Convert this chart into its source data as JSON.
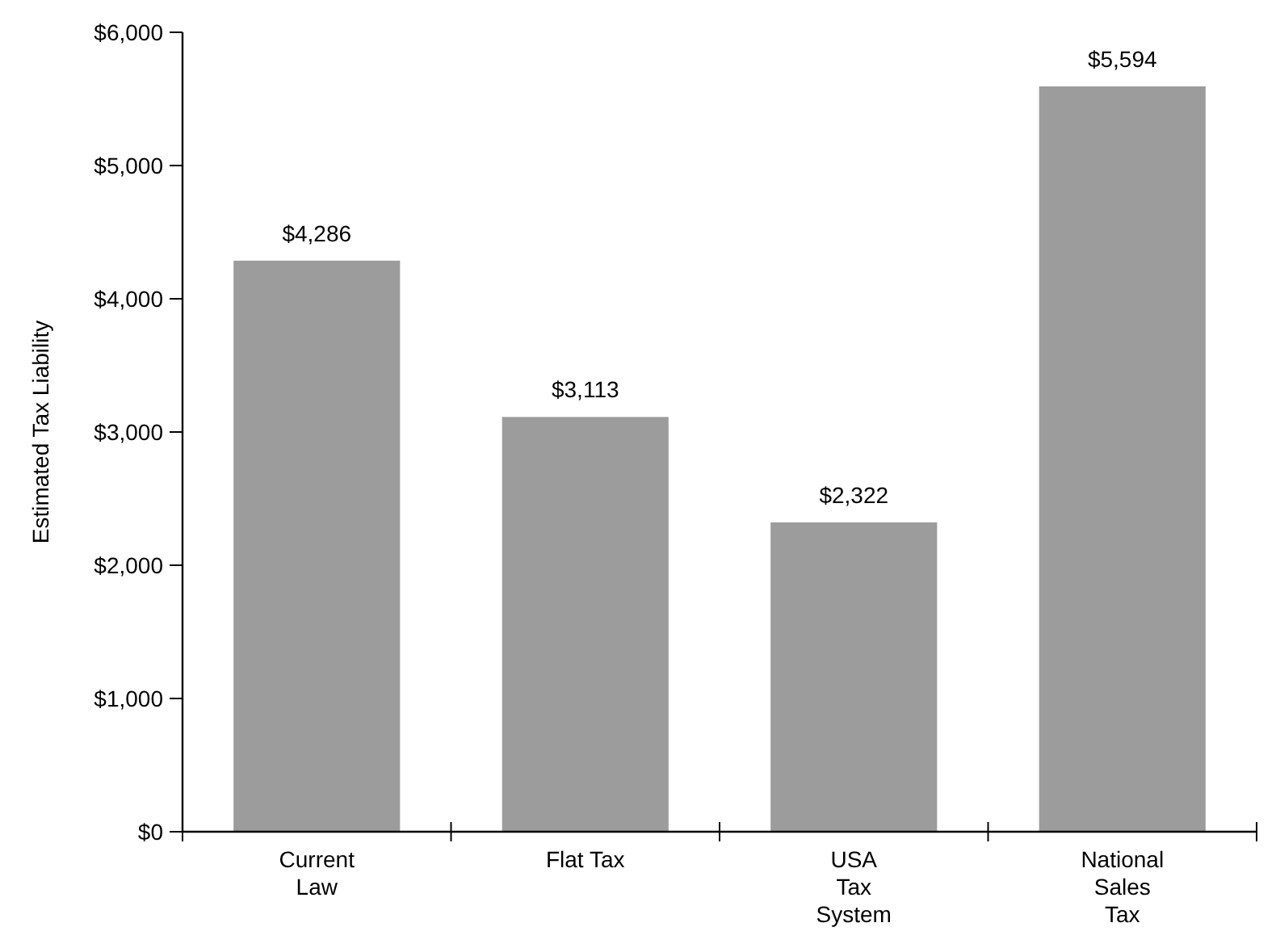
{
  "chart_data": {
    "type": "bar",
    "ylabel": "Estimated Tax Liability",
    "categories": [
      "Current\nLaw",
      "Flat Tax",
      "USA\nTax\nSystem",
      "National\nSales\nTax"
    ],
    "values": [
      4286,
      3113,
      2322,
      5594
    ],
    "value_labels": [
      "$4,286",
      "$3,113",
      "$2,322",
      "$5,594"
    ],
    "color": "#9c9c9c",
    "ylim": [
      0,
      6000
    ],
    "yticks": [
      {
        "value": 0,
        "label": "$0"
      },
      {
        "value": 1000,
        "label": "$1,000"
      },
      {
        "value": 2000,
        "label": "$2,000"
      },
      {
        "value": 3000,
        "label": "$3,000"
      },
      {
        "value": 4000,
        "label": "$4,000"
      },
      {
        "value": 5000,
        "label": "$5,000"
      },
      {
        "value": 6000,
        "label": "$6,000"
      }
    ],
    "grid": false
  }
}
